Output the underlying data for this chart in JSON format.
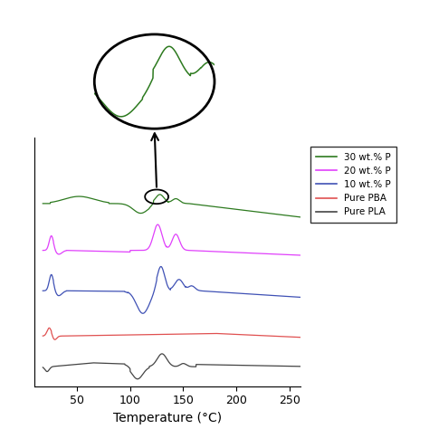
{
  "xlabel": "Temperature (°C)",
  "xlim": [
    10,
    260
  ],
  "colors": {
    "30wt": "#2d7a1f",
    "20wt": "#e040fb",
    "10wt": "#3f51b5",
    "pbat": "#e05050",
    "pla": "#444444"
  },
  "legend_entries": [
    "30 wt.% P",
    "20 wt.% P",
    "10 wt.% P",
    "Pure PBA",
    "Pure PLA"
  ],
  "offsets": [
    5.0,
    3.6,
    2.2,
    1.05,
    0.0
  ]
}
